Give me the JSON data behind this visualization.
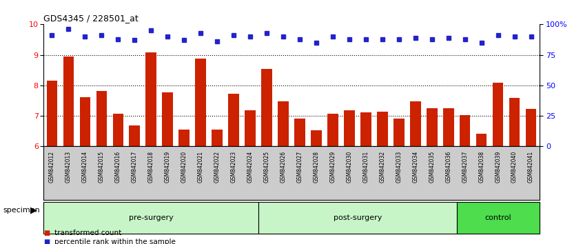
{
  "title": "GDS4345 / 228501_at",
  "categories": [
    "GSM842012",
    "GSM842013",
    "GSM842014",
    "GSM842015",
    "GSM842016",
    "GSM842017",
    "GSM842018",
    "GSM842019",
    "GSM842020",
    "GSM842021",
    "GSM842022",
    "GSM842023",
    "GSM842024",
    "GSM842025",
    "GSM842026",
    "GSM842027",
    "GSM842028",
    "GSM842029",
    "GSM842030",
    "GSM842031",
    "GSM842032",
    "GSM842033",
    "GSM842034",
    "GSM842035",
    "GSM842036",
    "GSM842037",
    "GSM842038",
    "GSM842039",
    "GSM842040",
    "GSM842041"
  ],
  "bar_values": [
    8.15,
    8.95,
    7.62,
    7.82,
    7.08,
    6.68,
    9.08,
    7.78,
    6.55,
    8.88,
    6.55,
    7.72,
    7.18,
    8.55,
    7.48,
    6.92,
    6.52,
    7.08,
    7.18,
    7.12,
    7.15,
    6.92,
    7.48,
    7.25,
    7.25,
    7.02,
    6.42,
    8.08,
    7.58,
    7.22
  ],
  "dot_values": [
    91,
    96,
    90,
    91,
    88,
    87,
    95,
    90,
    87,
    93,
    86,
    91,
    90,
    93,
    90,
    88,
    85,
    90,
    88,
    88,
    88,
    88,
    89,
    88,
    89,
    88,
    85,
    91,
    90,
    90
  ],
  "groups": [
    {
      "label": "pre-surgery",
      "start": 0,
      "end": 13,
      "color": "#c8f5c8"
    },
    {
      "label": "post-surgery",
      "start": 13,
      "end": 25,
      "color": "#c8f5c8"
    },
    {
      "label": "control",
      "start": 25,
      "end": 30,
      "color": "#4ddd4d"
    }
  ],
  "bar_color": "#CC2200",
  "dot_color": "#2222CC",
  "ylim_left": [
    6,
    10
  ],
  "ylim_right": [
    0,
    100
  ],
  "yticks_left": [
    6,
    7,
    8,
    9,
    10
  ],
  "yticks_right": [
    0,
    25,
    50,
    75,
    100
  ],
  "ytick_labels_right": [
    "0",
    "25",
    "50",
    "75",
    "100%"
  ],
  "background_color": "#ffffff",
  "grid_color": "#000000",
  "specimen_label": "specimen",
  "tick_bg_color": "#cccccc"
}
